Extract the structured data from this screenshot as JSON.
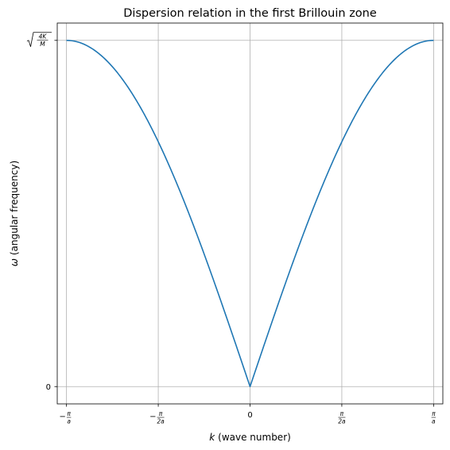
{
  "chart_data": {
    "type": "line",
    "title": "Dispersion relation in the first Brillouin zone",
    "xlabel": {
      "symbol": "k",
      "text": "(wave number)"
    },
    "ylabel": {
      "symbol": "ω",
      "text": "(angular frequency)"
    },
    "xlim": [
      -3.3,
      3.3
    ],
    "ylim": [
      -0.05,
      1.05
    ],
    "grid": true,
    "x_ticks": [
      {
        "value": -3.14159,
        "sign": "−",
        "num": "π",
        "den": "a"
      },
      {
        "value": -1.5708,
        "sign": "−",
        "num": "π",
        "den": "2a"
      },
      {
        "value": 0,
        "label": "0"
      },
      {
        "value": 1.5708,
        "sign": "",
        "num": "π",
        "den": "2a"
      },
      {
        "value": 3.14159,
        "sign": "",
        "num": "π",
        "den": "a"
      }
    ],
    "y_ticks": [
      {
        "value": 0,
        "label": "0"
      },
      {
        "value": 1,
        "num": "4K",
        "den": "M"
      }
    ],
    "series": [
      {
        "color": "#1f77b4",
        "formula": "omega = sqrt(4K/M) * |sin(k a / 2)|",
        "x": [
          -3.14159,
          -2.35619,
          -1.5708,
          -0.7854,
          0,
          0.7854,
          1.5708,
          2.35619,
          3.14159
        ],
        "y": [
          1.0,
          0.924,
          0.707,
          0.383,
          0.0,
          0.383,
          0.707,
          0.924,
          1.0
        ]
      }
    ]
  }
}
